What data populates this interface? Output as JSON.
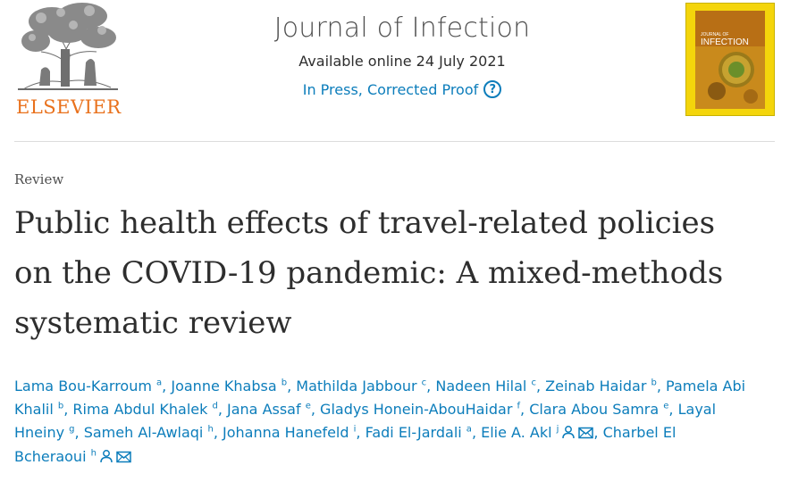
{
  "publisher": {
    "name": "ELSEVIER"
  },
  "journal": {
    "title": "Journal of Infection",
    "available": "Available online 24 July 2021",
    "status": "In Press, Corrected Proof",
    "help_glyph": "?"
  },
  "cover": {
    "title_top": "JOURNAL OF",
    "title_main": "INFECTION"
  },
  "article": {
    "type": "Review",
    "title": "Public health effects of travel-related policies on the COVID-19 pandemic: A mixed-methods systematic review"
  },
  "authors": [
    {
      "name": "Lama Bou-Karroum",
      "aff": "a",
      "sep": ",",
      "person_icon": false,
      "mail_icon": false
    },
    {
      "name": "Joanne Khabsa",
      "aff": "b",
      "sep": ",",
      "person_icon": false,
      "mail_icon": false
    },
    {
      "name": "Mathilda Jabbour",
      "aff": "c",
      "sep": ",",
      "person_icon": false,
      "mail_icon": false
    },
    {
      "name": "Nadeen Hilal",
      "aff": "c",
      "sep": ",",
      "person_icon": false,
      "mail_icon": false
    },
    {
      "name": "Zeinab Haidar",
      "aff": "b",
      "sep": ",",
      "person_icon": false,
      "mail_icon": false
    },
    {
      "name": "Pamela Abi Khalil",
      "aff": "b",
      "sep": ",",
      "person_icon": false,
      "mail_icon": false
    },
    {
      "name": "Rima Abdul Khalek",
      "aff": "d",
      "sep": ",",
      "person_icon": false,
      "mail_icon": false
    },
    {
      "name": "Jana Assaf",
      "aff": "e",
      "sep": ",",
      "person_icon": false,
      "mail_icon": false
    },
    {
      "name": "Gladys Honein-AbouHaidar",
      "aff": "f",
      "sep": ",",
      "person_icon": false,
      "mail_icon": false
    },
    {
      "name": "Clara Abou Samra",
      "aff": "e",
      "sep": ",",
      "person_icon": false,
      "mail_icon": false
    },
    {
      "name": "Layal Hneiny",
      "aff": "g",
      "sep": ",",
      "person_icon": false,
      "mail_icon": false
    },
    {
      "name": "Sameh Al-Awlaqi",
      "aff": "h",
      "sep": ",",
      "person_icon": false,
      "mail_icon": false
    },
    {
      "name": "Johanna Hanefeld",
      "aff": "i",
      "sep": ",",
      "person_icon": false,
      "mail_icon": false
    },
    {
      "name": "Fadi El-Jardali",
      "aff": "a",
      "sep": ",",
      "person_icon": false,
      "mail_icon": false
    },
    {
      "name": "Elie A. Akl",
      "aff": "j",
      "sep": ",",
      "person_icon": true,
      "mail_icon": true
    },
    {
      "name": "Charbel El Bcheraoui",
      "aff": "h",
      "sep": "",
      "person_icon": true,
      "mail_icon": true
    }
  ],
  "icons": {
    "help": "question-circle-icon",
    "person": "person-icon",
    "mail": "envelope-icon",
    "logo": "elsevier-tree-logo"
  },
  "colors": {
    "link": "#0c7dbb",
    "brand": "#e9711c",
    "text": "#2e2e2e",
    "cover": "#f4d50b"
  }
}
